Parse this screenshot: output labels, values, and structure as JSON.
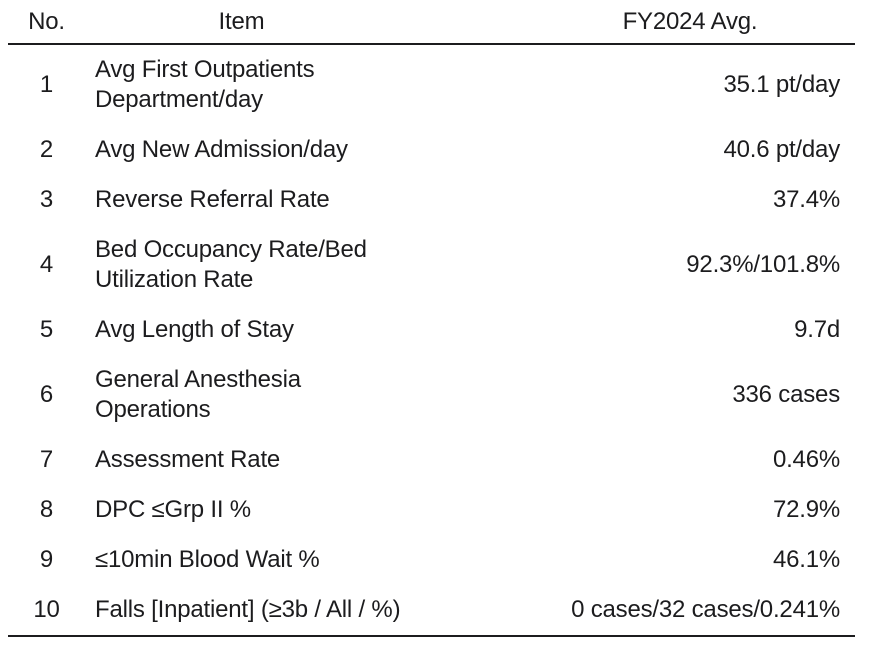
{
  "page": {
    "background_color": "#ffffff",
    "text_color": "#1c1c1e",
    "rule_color": "#1c1c1e"
  },
  "table": {
    "columns": [
      "No.",
      "Item",
      "FY2024 Avg."
    ],
    "rows": [
      {
        "no": "1",
        "item": "Avg First Outpatients\nDepartment/day",
        "value": "35.1 pt/day"
      },
      {
        "no": "2",
        "item": "Avg New Admission/day",
        "value": "40.6 pt/day"
      },
      {
        "no": "3",
        "item": "Reverse Referral Rate",
        "value": "37.4%"
      },
      {
        "no": "4",
        "item": "Bed Occupancy Rate/Bed\nUtilization Rate",
        "value": "92.3%/101.8%"
      },
      {
        "no": "5",
        "item": "Avg Length of Stay",
        "value": "9.7d"
      },
      {
        "no": "6",
        "item": "General Anesthesia\nOperations",
        "value": "336 cases"
      },
      {
        "no": "7",
        "item": "Assessment Rate",
        "value": "0.46%"
      },
      {
        "no": "8",
        "item": "DPC ≤Grp II %",
        "value": "72.9%"
      },
      {
        "no": "9",
        "item": "≤10min Blood Wait %",
        "value": "46.1%"
      },
      {
        "no": "10",
        "item": "Falls [Inpatient] (≥3b / All / %)",
        "value": "0 cases/32 cases/0.241%"
      }
    ]
  }
}
